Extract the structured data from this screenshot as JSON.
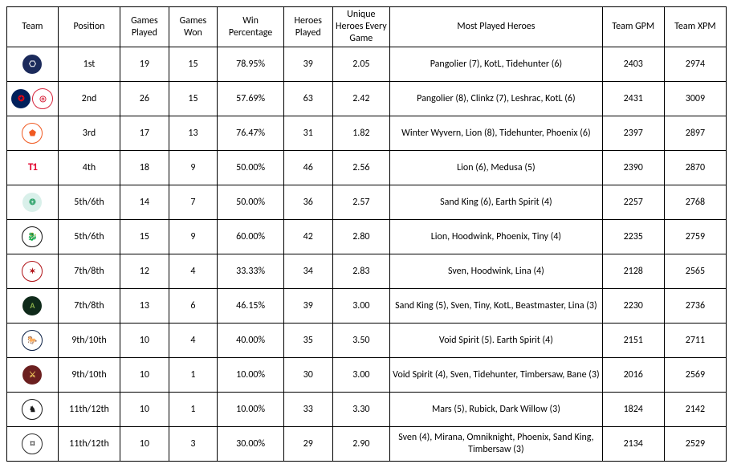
{
  "columns": [
    "Team",
    "Position",
    "Games Played",
    "Games Won",
    "Win Percentage",
    "Heroes Played",
    "Unique Heroes Every Game",
    "Most Played Heroes",
    "Team GPM",
    "Team XPM"
  ],
  "col_classes": [
    "col-team",
    "col-pos",
    "col-gp",
    "col-gw",
    "col-winp",
    "col-hp",
    "col-uheg",
    "col-mph",
    "col-gpm",
    "col-xpm"
  ],
  "rows": [
    {
      "team_name": "tundra",
      "logos": [
        {
          "bg": "#1b2a5b",
          "fg": "#ffffff",
          "glyph": "⎔"
        }
      ],
      "position": "1st",
      "games_played": "19",
      "games_won": "15",
      "win_pct": "78.95%",
      "heroes_played": "39",
      "uheg": "2.05",
      "most_played": "Pangolier (7), KotL, Tidehunter (6)",
      "gpm": "2403",
      "xpm": "2974"
    },
    {
      "team_name": "psg-lgd",
      "logos": [
        {
          "bg": "#00205b",
          "fg": "#e30613",
          "glyph": "✪"
        },
        {
          "bg": "#ffffff",
          "fg": "#d7263d",
          "glyph": "◎",
          "border": "#d7263d"
        }
      ],
      "position": "2nd",
      "games_played": "26",
      "games_won": "15",
      "win_pct": "57.69%",
      "heroes_played": "63",
      "uheg": "2.42",
      "most_played": "Pangolier (8), Clinkz (7), Leshrac, KotL (6)",
      "gpm": "2431",
      "xpm": "3009"
    },
    {
      "team_name": "virtus-pro",
      "logos": [
        {
          "bg": "#ffffff",
          "fg": "#f05a22",
          "glyph": "⬟",
          "border": "#f05a22"
        }
      ],
      "position": "3rd",
      "games_played": "17",
      "games_won": "13",
      "win_pct": "76.47%",
      "heroes_played": "31",
      "uheg": "1.82",
      "most_played": "Winter Wyvern, Lion (8), Tidehunter, Phoenix (6)",
      "gpm": "2397",
      "xpm": "2897"
    },
    {
      "team_name": "t1",
      "logos": [
        {
          "bg": "transparent",
          "fg": "#e2012d",
          "glyph": "T1",
          "square": true
        }
      ],
      "position": "4th",
      "games_played": "18",
      "games_won": "9",
      "win_pct": "50.00%",
      "heroes_played": "46",
      "uheg": "2.56",
      "most_played": "Lion (6), Medusa (5)",
      "gpm": "2390",
      "xpm": "2870"
    },
    {
      "team_name": "beastcoast",
      "logos": [
        {
          "bg": "#d9f0ea",
          "fg": "#2fa36b",
          "glyph": "❂"
        }
      ],
      "position": "5th/6th",
      "games_played": "14",
      "games_won": "7",
      "win_pct": "50.00%",
      "heroes_played": "36",
      "uheg": "2.57",
      "most_played": "Sand King (6), Earth Spirit (4)",
      "gpm": "2257",
      "xpm": "2768"
    },
    {
      "team_name": "team-spirit",
      "logos": [
        {
          "bg": "#ffffff",
          "fg": "#111111",
          "glyph": "🐉",
          "border": "#111"
        }
      ],
      "position": "5th/6th",
      "games_played": "15",
      "games_won": "9",
      "win_pct": "60.00%",
      "heroes_played": "42",
      "uheg": "2.80",
      "most_played": "Lion, Hoodwink, Phoenix, Tiny (4)",
      "gpm": "2235",
      "xpm": "2759"
    },
    {
      "team_name": "aster",
      "logos": [
        {
          "bg": "#ffffff",
          "fg": "#b01116",
          "glyph": "✶",
          "border": "#b01116"
        }
      ],
      "position": "7th/8th",
      "games_played": "12",
      "games_won": "4",
      "win_pct": "33.33%",
      "heroes_played": "34",
      "uheg": "2.83",
      "most_played": "Sven, Hoodwink, Lina (4)",
      "gpm": "2128",
      "xpm": "2565"
    },
    {
      "team_name": "alliance",
      "logos": [
        {
          "bg": "#0f2a1a",
          "fg": "#8bb04b",
          "glyph": "A"
        }
      ],
      "position": "7th/8th",
      "games_played": "13",
      "games_won": "6",
      "win_pct": "46.15%",
      "heroes_played": "39",
      "uheg": "3.00",
      "most_played": "Sand King (5), Sven, Tiny, KotL, Beastmaster, Lina (3)",
      "gpm": "2230",
      "xpm": "2736"
    },
    {
      "team_name": "team-liquid",
      "logos": [
        {
          "bg": "#ffffff",
          "fg": "#0a1f44",
          "glyph": "🐎",
          "border": "#0a1f44"
        }
      ],
      "position": "9th/10th",
      "games_played": "10",
      "games_won": "4",
      "win_pct": "40.00%",
      "heroes_played": "35",
      "uheg": "3.50",
      "most_played": "Void Spirit (5). Earth Spirit (4)",
      "gpm": "2151",
      "xpm": "2711"
    },
    {
      "team_name": "thunder-predator",
      "logos": [
        {
          "bg": "#6b1f1f",
          "fg": "#e8c15a",
          "glyph": "⚔"
        }
      ],
      "position": "9th/10th",
      "games_played": "10",
      "games_won": "1",
      "win_pct": "10.00%",
      "heroes_played": "30",
      "uheg": "3.00",
      "most_played": "Void Spirit (4), Sven, Tidehunter, Timbersaw, Bane (3)",
      "gpm": "2016",
      "xpm": "2569"
    },
    {
      "team_name": "tnc",
      "logos": [
        {
          "bg": "#ffffff",
          "fg": "#1a1a1a",
          "glyph": "♞",
          "border": "#1a1a1a"
        }
      ],
      "position": "11th/12th",
      "games_played": "10",
      "games_won": "1",
      "win_pct": "10.00%",
      "heroes_played": "33",
      "uheg": "3.30",
      "most_played": "Mars (5), Rubick, Dark Willow (3)",
      "gpm": "1824",
      "xpm": "2142"
    },
    {
      "team_name": "sg-esports",
      "logos": [
        {
          "bg": "#ffffff",
          "fg": "#2b2b2b",
          "glyph": "⌑",
          "border": "#2b2b2b"
        }
      ],
      "position": "11th/12th",
      "games_played": "10",
      "games_won": "3",
      "win_pct": "30.00%",
      "heroes_played": "29",
      "uheg": "2.90",
      "most_played": "Sven (4), Mirana, Omniknight, Phoenix, Sand King, Timbersaw (3)",
      "gpm": "2134",
      "xpm": "2529"
    }
  ]
}
